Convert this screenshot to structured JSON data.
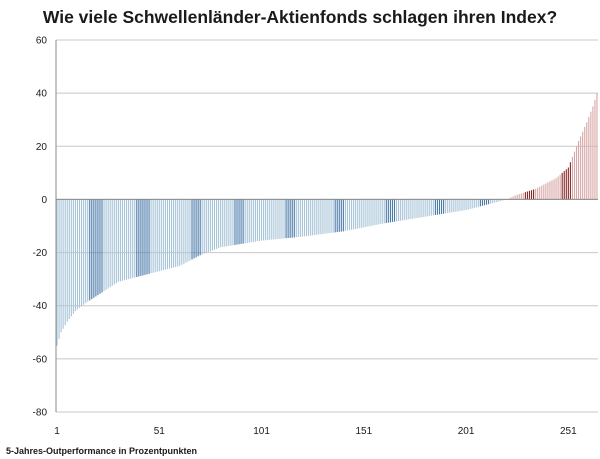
{
  "chart_data": {
    "type": "bar",
    "title": "Wie viele Schwellenländer-Aktienfonds schlagen ihren Index?",
    "footnote": "5-Jahres-Outperformance in Prozentpunkten",
    "xlabel": "",
    "ylabel": "",
    "ylim": [
      -80,
      60
    ],
    "y_ticks": [
      60,
      40,
      20,
      0,
      -20,
      -40,
      -60,
      -80
    ],
    "x_tick_labels": [
      "1",
      "51",
      "101",
      "151",
      "201",
      "251"
    ],
    "x_tick_values": [
      1,
      51,
      101,
      151,
      201,
      251
    ],
    "grid": true,
    "n_funds": 265,
    "key_points": [
      {
        "rank": 1,
        "value": -55
      },
      {
        "rank": 3,
        "value": -50
      },
      {
        "rank": 6,
        "value": -46
      },
      {
        "rank": 10,
        "value": -42
      },
      {
        "rank": 15,
        "value": -39
      },
      {
        "rank": 21,
        "value": -36
      },
      {
        "rank": 31,
        "value": -31
      },
      {
        "rank": 41,
        "value": -29
      },
      {
        "rank": 51,
        "value": -27
      },
      {
        "rank": 61,
        "value": -25
      },
      {
        "rank": 71,
        "value": -21
      },
      {
        "rank": 81,
        "value": -18
      },
      {
        "rank": 101,
        "value": -15.5
      },
      {
        "rank": 121,
        "value": -14
      },
      {
        "rank": 141,
        "value": -12
      },
      {
        "rank": 161,
        "value": -9
      },
      {
        "rank": 181,
        "value": -6.5
      },
      {
        "rank": 201,
        "value": -4
      },
      {
        "rank": 211,
        "value": -2
      },
      {
        "rank": 221,
        "value": 0
      },
      {
        "rank": 225,
        "value": 1.5
      },
      {
        "rank": 235,
        "value": 4
      },
      {
        "rank": 245,
        "value": 8
      },
      {
        "rank": 251,
        "value": 12
      },
      {
        "rank": 256,
        "value": 22
      },
      {
        "rank": 260,
        "value": 29
      },
      {
        "rank": 263,
        "value": 35
      },
      {
        "rank": 265,
        "value": 40
      }
    ],
    "negative_color": "#a8c4d8",
    "negative_highlight_color": "#4a7aa8",
    "positive_color": "#d8a8a8",
    "positive_highlight_color": "#8a2a2a",
    "highlight_ranks": [
      17,
      18,
      19,
      20,
      21,
      22,
      23,
      40,
      41,
      42,
      43,
      44,
      45,
      46,
      67,
      68,
      69,
      70,
      71,
      88,
      89,
      90,
      91,
      92,
      113,
      114,
      115,
      116,
      117,
      137,
      138,
      139,
      140,
      141,
      162,
      163,
      164,
      165,
      166,
      186,
      187,
      188,
      189,
      190,
      208,
      209,
      210,
      211,
      212,
      230,
      231,
      232,
      233,
      234,
      248,
      249,
      250,
      251,
      252
    ]
  }
}
